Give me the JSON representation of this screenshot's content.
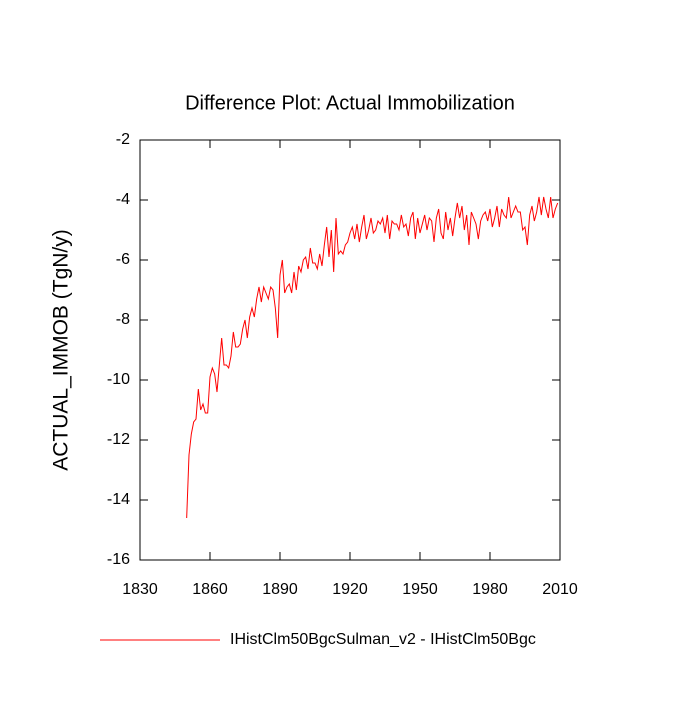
{
  "chart_data": {
    "type": "line",
    "title": "Difference Plot: Actual Immobilization",
    "y_label": "ACTUAL_IMMOB  (TgN/y)",
    "x": [
      1850,
      1851,
      1852,
      1853,
      1854,
      1855,
      1856,
      1857,
      1858,
      1859,
      1860,
      1861,
      1862,
      1863,
      1864,
      1865,
      1866,
      1867,
      1868,
      1869,
      1870,
      1871,
      1872,
      1873,
      1874,
      1875,
      1876,
      1877,
      1878,
      1879,
      1880,
      1881,
      1882,
      1883,
      1884,
      1885,
      1886,
      1887,
      1888,
      1889,
      1890,
      1891,
      1892,
      1893,
      1894,
      1895,
      1896,
      1897,
      1898,
      1899,
      1900,
      1901,
      1902,
      1903,
      1904,
      1905,
      1906,
      1907,
      1908,
      1909,
      1910,
      1911,
      1912,
      1913,
      1914,
      1915,
      1916,
      1917,
      1918,
      1919,
      1920,
      1921,
      1922,
      1923,
      1924,
      1925,
      1926,
      1927,
      1928,
      1929,
      1930,
      1931,
      1932,
      1933,
      1934,
      1935,
      1936,
      1937,
      1938,
      1939,
      1940,
      1941,
      1942,
      1943,
      1944,
      1945,
      1946,
      1947,
      1948,
      1949,
      1950,
      1951,
      1952,
      1953,
      1954,
      1955,
      1956,
      1957,
      1958,
      1959,
      1960,
      1961,
      1962,
      1963,
      1964,
      1965,
      1966,
      1967,
      1968,
      1969,
      1970,
      1971,
      1972,
      1973,
      1974,
      1975,
      1976,
      1977,
      1978,
      1979,
      1980,
      1981,
      1982,
      1983,
      1984,
      1985,
      1986,
      1987,
      1988,
      1989,
      1990,
      1991,
      1992,
      1993,
      1994,
      1995,
      1996,
      1997,
      1998,
      1999,
      2000,
      2001,
      2002,
      2003,
      2004,
      2005,
      2006,
      2007,
      2008,
      2009
    ],
    "series": [
      {
        "name": "IHistClm50BgcSulman_v2 - IHistClm50Bgc",
        "color": "#ff0000",
        "values": [
          -14.6,
          -12.5,
          -11.8,
          -11.4,
          -11.3,
          -10.3,
          -11.0,
          -10.8,
          -11.1,
          -11.1,
          -9.9,
          -9.6,
          -9.8,
          -10.4,
          -9.5,
          -8.6,
          -9.5,
          -9.5,
          -9.6,
          -9.2,
          -8.4,
          -8.9,
          -8.9,
          -8.8,
          -8.3,
          -8.0,
          -8.6,
          -7.9,
          -7.6,
          -7.9,
          -7.3,
          -6.9,
          -7.4,
          -6.9,
          -7.1,
          -7.3,
          -6.9,
          -7.0,
          -7.6,
          -8.6,
          -6.5,
          -6.0,
          -7.1,
          -6.9,
          -6.8,
          -7.1,
          -6.4,
          -7.0,
          -6.2,
          -6.4,
          -6.0,
          -5.9,
          -6.3,
          -5.6,
          -6.1,
          -6.1,
          -6.3,
          -5.8,
          -6.2,
          -5.5,
          -4.9,
          -5.9,
          -5.0,
          -6.4,
          -4.6,
          -5.8,
          -5.7,
          -5.8,
          -5.5,
          -5.4,
          -5.1,
          -4.9,
          -5.3,
          -4.8,
          -5.4,
          -4.9,
          -4.5,
          -5.3,
          -5.0,
          -4.6,
          -5.1,
          -5.0,
          -4.7,
          -4.8,
          -4.6,
          -5.1,
          -4.5,
          -5.3,
          -4.7,
          -4.8,
          -4.8,
          -5.0,
          -4.5,
          -4.9,
          -4.8,
          -5.2,
          -4.6,
          -4.4,
          -5.3,
          -4.6,
          -5.1,
          -4.8,
          -4.5,
          -5.0,
          -4.6,
          -4.7,
          -5.4,
          -4.6,
          -4.3,
          -5.1,
          -5.3,
          -4.4,
          -5.0,
          -4.6,
          -5.2,
          -4.6,
          -4.1,
          -4.6,
          -4.2,
          -5.0,
          -4.5,
          -5.5,
          -4.4,
          -4.6,
          -4.8,
          -5.3,
          -4.7,
          -4.5,
          -4.4,
          -4.7,
          -4.3,
          -4.9,
          -4.6,
          -4.2,
          -4.9,
          -4.3,
          -4.5,
          -4.6,
          -3.9,
          -4.6,
          -4.4,
          -4.2,
          -4.4,
          -4.4,
          -5.0,
          -4.9,
          -5.5,
          -4.5,
          -4.2,
          -4.7,
          -4.4,
          -3.9,
          -4.5,
          -3.9,
          -4.3,
          -4.6,
          -3.9,
          -4.6,
          -4.3,
          -4.1
        ]
      }
    ],
    "xlim": [
      1830,
      2010
    ],
    "xticks": [
      1830,
      1860,
      1890,
      1920,
      1950,
      1980,
      2010
    ],
    "ylim": [
      -16,
      -2
    ],
    "yticks": [
      -16,
      -14,
      -12,
      -10,
      -8,
      -6,
      -4,
      -2
    ]
  }
}
